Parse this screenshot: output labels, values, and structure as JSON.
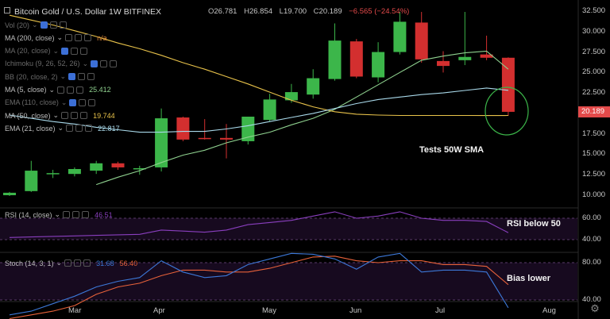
{
  "header": {
    "title": "Bitcoin Gold / U.S. Dollar 1W BITFINEX",
    "ohlc": {
      "o_label": "O",
      "o": "26.781",
      "h_label": "H",
      "h": "26.854",
      "l_label": "L",
      "l": "19.700",
      "c_label": "C",
      "c": "20.189",
      "change": "−6.565 (−24.54%)"
    }
  },
  "indicators": [
    {
      "label": "Vol (20)",
      "value": "",
      "dim": true
    },
    {
      "label": "MA (200, close)",
      "value": "n/a",
      "dim": false,
      "color": "#e08a3a"
    },
    {
      "label": "MA (20, close)",
      "value": "",
      "dim": true
    },
    {
      "label": "Ichimoku (9, 26, 52, 26)",
      "value": "",
      "dim": true
    },
    {
      "label": "BB (20, close, 2)",
      "value": "",
      "dim": true
    },
    {
      "label": "MA (5, close)",
      "value": "25.412",
      "dim": false,
      "color": "#8fd18f"
    },
    {
      "label": "EMA (110, close)",
      "value": "",
      "dim": true
    },
    {
      "label": "MA (50, close)",
      "value": "19.744",
      "dim": false,
      "color": "#e8c24a"
    },
    {
      "label": "EMA (21, close)",
      "value": "22.817",
      "dim": false,
      "color": "#a9d9ea"
    }
  ],
  "sub_indicators": {
    "rsi": {
      "label": "RSI (14, close)",
      "value": "46.51",
      "color": "#8a3fbf"
    },
    "stoch": {
      "label": "Stoch (14, 3, 1)",
      "k": "31.68",
      "d": "56.40",
      "k_color": "#3c78d8",
      "d_color": "#e8623a"
    }
  },
  "price_axis": {
    "ticks": [
      "32.500",
      "30.000",
      "27.500",
      "25.000",
      "22.500",
      "20.189",
      "17.500",
      "15.000",
      "12.500",
      "10.000"
    ]
  },
  "rsi_axis": {
    "ticks": [
      "60.00",
      "40.00"
    ]
  },
  "stoch_axis": {
    "ticks": [
      "80.00",
      "40.00"
    ]
  },
  "x_axis": {
    "labels": [
      "Mar",
      "Apr",
      "May",
      "Jun",
      "Jul",
      "Aug"
    ]
  },
  "last_price": "20.189",
  "annotations": {
    "tests": "Tests 50W SMA",
    "rsi": "RSI below 50",
    "bias": "Bias lower"
  },
  "colors": {
    "up": "#3cb64a",
    "down": "#d32f2f",
    "ma5": "#8fd18f",
    "ma50": "#e8c24a",
    "ema21": "#a9d9ea",
    "rsi": "#8a3fbf",
    "stoch_k": "#3c78d8",
    "stoch_d": "#e8623a",
    "circle": "#3cb64a"
  },
  "chart_data": {
    "type": "candlestick",
    "title": "Bitcoin Gold / U.S. Dollar 1W BITFINEX",
    "candles": [
      {
        "o": 10.0,
        "h": 10.4,
        "l": 9.9,
        "c": 10.3
      },
      {
        "o": 10.5,
        "h": 14.2,
        "l": 10.4,
        "c": 13.0
      },
      {
        "o": 12.6,
        "h": 13.1,
        "l": 12.1,
        "c": 12.7
      },
      {
        "o": 12.6,
        "h": 13.4,
        "l": 12.3,
        "c": 13.2
      },
      {
        "o": 13.0,
        "h": 14.2,
        "l": 12.6,
        "c": 13.9
      },
      {
        "o": 13.9,
        "h": 14.1,
        "l": 13.1,
        "c": 13.4
      },
      {
        "o": 13.3,
        "h": 13.6,
        "l": 12.5,
        "c": 13.3
      },
      {
        "o": 13.4,
        "h": 20.6,
        "l": 12.9,
        "c": 19.4
      },
      {
        "o": 19.5,
        "h": 19.6,
        "l": 16.6,
        "c": 16.8
      },
      {
        "o": 17.0,
        "h": 19.3,
        "l": 16.8,
        "c": 16.9
      },
      {
        "o": 17.0,
        "h": 18.7,
        "l": 14.5,
        "c": 16.8
      },
      {
        "o": 16.6,
        "h": 19.6,
        "l": 16.2,
        "c": 19.6
      },
      {
        "o": 19.2,
        "h": 22.4,
        "l": 19.0,
        "c": 21.7
      },
      {
        "o": 21.6,
        "h": 23.6,
        "l": 21.3,
        "c": 22.6
      },
      {
        "o": 22.3,
        "h": 25.4,
        "l": 21.8,
        "c": 24.3
      },
      {
        "o": 24.2,
        "h": 31.0,
        "l": 24.0,
        "c": 28.9
      },
      {
        "o": 28.8,
        "h": 29.1,
        "l": 24.3,
        "c": 24.5
      },
      {
        "o": 24.4,
        "h": 28.7,
        "l": 23.8,
        "c": 27.5
      },
      {
        "o": 27.5,
        "h": 32.4,
        "l": 27.2,
        "c": 31.2
      },
      {
        "o": 31.1,
        "h": 32.4,
        "l": 26.2,
        "c": 26.6
      },
      {
        "o": 26.4,
        "h": 27.6,
        "l": 25.0,
        "c": 25.8
      },
      {
        "o": 26.5,
        "h": 32.4,
        "l": 25.9,
        "c": 26.9
      },
      {
        "o": 27.2,
        "h": 29.5,
        "l": 26.5,
        "c": 26.8
      },
      {
        "o": 26.8,
        "h": 26.85,
        "l": 19.7,
        "c": 20.19
      }
    ],
    "series": [
      {
        "name": "MA (5, close)",
        "values": [
          null,
          null,
          null,
          null,
          11.3,
          12.2,
          13.0,
          14.0,
          14.9,
          15.5,
          16.4,
          17.1,
          17.7,
          18.6,
          19.4,
          20.5,
          22.0,
          23.5,
          25.0,
          26.5,
          27.0,
          27.4,
          27.6,
          25.4
        ]
      },
      {
        "name": "MA (50, close)",
        "values": [
          32.0,
          31.4,
          30.8,
          30.1,
          29.4,
          28.6,
          27.9,
          27.1,
          26.2,
          25.4,
          24.5,
          23.6,
          22.6,
          21.6,
          20.8,
          20.2,
          19.9,
          19.8,
          19.75,
          19.75,
          19.75,
          19.75,
          19.74,
          19.744
        ]
      },
      {
        "name": "EMA (21, close)",
        "values": [
          19.8,
          19.4,
          19.0,
          18.7,
          18.3,
          18.0,
          17.7,
          17.7,
          17.8,
          17.8,
          18.1,
          18.5,
          19.0,
          19.5,
          20.0,
          20.6,
          21.2,
          21.7,
          22.0,
          22.3,
          22.5,
          22.8,
          23.1,
          22.817
        ]
      }
    ],
    "rsi": [
      42,
      42.5,
      43,
      43.5,
      44,
      44.5,
      45,
      49,
      48,
      47,
      49,
      54,
      56,
      58,
      62,
      66,
      60,
      62,
      66,
      60,
      58,
      58,
      57,
      46.51
    ],
    "stoch_k": [
      24,
      28,
      36,
      44,
      54,
      60,
      64,
      82,
      70,
      64,
      66,
      78,
      84,
      90,
      89,
      84,
      73,
      86,
      90,
      70,
      72,
      72,
      70,
      31.68
    ],
    "stoch_d": [
      20,
      24,
      28,
      34,
      46,
      54,
      58,
      66,
      72,
      72,
      70,
      70,
      74,
      80,
      86,
      87,
      82,
      80,
      82,
      82,
      78,
      78,
      76,
      56.4
    ],
    "ylim": [
      9.0,
      33.2
    ],
    "rsi_ylim": [
      28,
      75
    ],
    "stoch_ylim": [
      0,
      100
    ],
    "grid": false,
    "legend": "top-left"
  }
}
